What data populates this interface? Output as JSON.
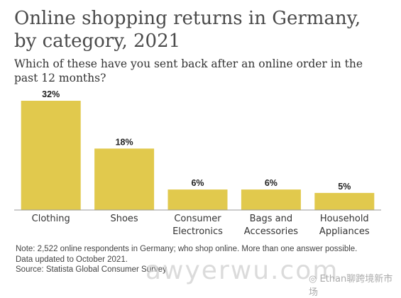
{
  "chart_data": {
    "type": "bar",
    "title": "Online shopping returns in Germany, by category, 2021",
    "subtitle": "Which of these have you sent back after an online order in the past 12 months?",
    "categories": [
      "Clothing",
      "Shoes",
      "Consumer Electronics",
      "Bags and Accessories",
      "Household Appliances"
    ],
    "category_lines": [
      [
        "Clothing"
      ],
      [
        "Shoes"
      ],
      [
        "Consumer",
        "Electronics"
      ],
      [
        "Bags and",
        "Accessories"
      ],
      [
        "Household",
        "Appliances"
      ]
    ],
    "values": [
      32,
      18,
      6,
      6,
      5
    ],
    "value_labels": [
      "32%",
      "18%",
      "6%",
      "6%",
      "5%"
    ],
    "ylim": [
      0,
      32
    ],
    "grid": false,
    "legend": "none",
    "bar_color": "#e1c94d",
    "baseline_color": "#9a9a9a"
  },
  "title_lines": [
    "Online shopping returns in Germany,",
    "by category, 2021"
  ],
  "subtitle_lines": [
    "Which of these have you sent back after an online order in the",
    "past 12 months?"
  ],
  "note_lines": [
    "Note: 2,522 online respondents in Germany; who shop online. More than one answer possible.",
    "Data updated to October 2021.",
    "Source: Statista Global Consumer Survey"
  ],
  "watermark": {
    "text": "awyerwu.com",
    "chat_icon": "wechat-icon",
    "chat_text": "Ethan聊跨境新市场"
  }
}
